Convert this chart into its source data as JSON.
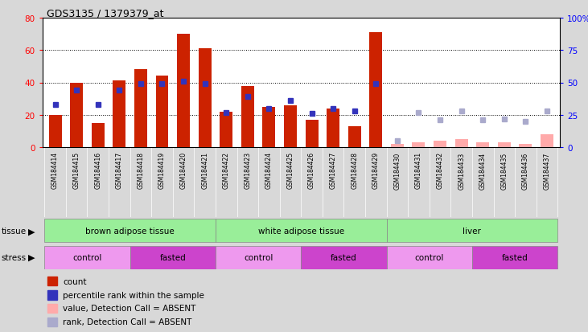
{
  "title": "GDS3135 / 1379379_at",
  "samples": [
    "GSM184414",
    "GSM184415",
    "GSM184416",
    "GSM184417",
    "GSM184418",
    "GSM184419",
    "GSM184420",
    "GSM184421",
    "GSM184422",
    "GSM184423",
    "GSM184424",
    "GSM184425",
    "GSM184426",
    "GSM184427",
    "GSM184428",
    "GSM184429",
    "GSM184430",
    "GSM184431",
    "GSM184432",
    "GSM184433",
    "GSM184434",
    "GSM184435",
    "GSM184436",
    "GSM184437"
  ],
  "bar_values": [
    20,
    40,
    15,
    41,
    48,
    44,
    70,
    61,
    22,
    38,
    25,
    26,
    17,
    24,
    13,
    71,
    2,
    3,
    4,
    5,
    3,
    3,
    2,
    8
  ],
  "bar_absent": [
    false,
    false,
    false,
    false,
    false,
    false,
    false,
    false,
    false,
    false,
    false,
    false,
    false,
    false,
    false,
    false,
    true,
    true,
    true,
    true,
    true,
    true,
    true,
    true
  ],
  "rank_values_pct": [
    33,
    44,
    33,
    44,
    49,
    49,
    51,
    49,
    27,
    39,
    30,
    36,
    26,
    30,
    28,
    49,
    5,
    27,
    21,
    28,
    21,
    22,
    20,
    28
  ],
  "rank_absent": [
    false,
    false,
    false,
    false,
    false,
    false,
    false,
    false,
    false,
    false,
    false,
    false,
    false,
    false,
    false,
    false,
    true,
    true,
    true,
    true,
    true,
    true,
    true,
    true
  ],
  "ylim_left": [
    0,
    80
  ],
  "ylim_right": [
    0,
    100
  ],
  "yticks_left": [
    0,
    20,
    40,
    60,
    80
  ],
  "yticks_right_vals": [
    0,
    25,
    50,
    75,
    100
  ],
  "yticks_right_labels": [
    "0",
    "25",
    "50",
    "75",
    "100%"
  ],
  "bar_color_present": "#cc2200",
  "bar_color_absent": "#ffaaaa",
  "rank_color_present": "#3333bb",
  "rank_color_absent": "#aaaacc",
  "bg_color": "#d8d8d8",
  "plot_bg": "#ffffff",
  "xticklabel_bg": "#c8c8c8",
  "tissue_color": "#99ee99",
  "stress_control_color": "#ee99ee",
  "stress_fasted_color": "#cc44cc",
  "tissue_groups": [
    {
      "label": "brown adipose tissue",
      "start": 0,
      "end": 8
    },
    {
      "label": "white adipose tissue",
      "start": 8,
      "end": 16
    },
    {
      "label": "liver",
      "start": 16,
      "end": 24
    }
  ],
  "stress_groups": [
    {
      "label": "control",
      "start": 0,
      "end": 4,
      "type": "control"
    },
    {
      "label": "fasted",
      "start": 4,
      "end": 8,
      "type": "fasted"
    },
    {
      "label": "control",
      "start": 8,
      "end": 12,
      "type": "control"
    },
    {
      "label": "fasted",
      "start": 12,
      "end": 16,
      "type": "fasted"
    },
    {
      "label": "control",
      "start": 16,
      "end": 20,
      "type": "control"
    },
    {
      "label": "fasted",
      "start": 20,
      "end": 24,
      "type": "fasted"
    }
  ],
  "legend_items": [
    {
      "color": "#cc2200",
      "label": "count"
    },
    {
      "color": "#3333bb",
      "label": "percentile rank within the sample"
    },
    {
      "color": "#ffaaaa",
      "label": "value, Detection Call = ABSENT"
    },
    {
      "color": "#aaaacc",
      "label": "rank, Detection Call = ABSENT"
    }
  ]
}
